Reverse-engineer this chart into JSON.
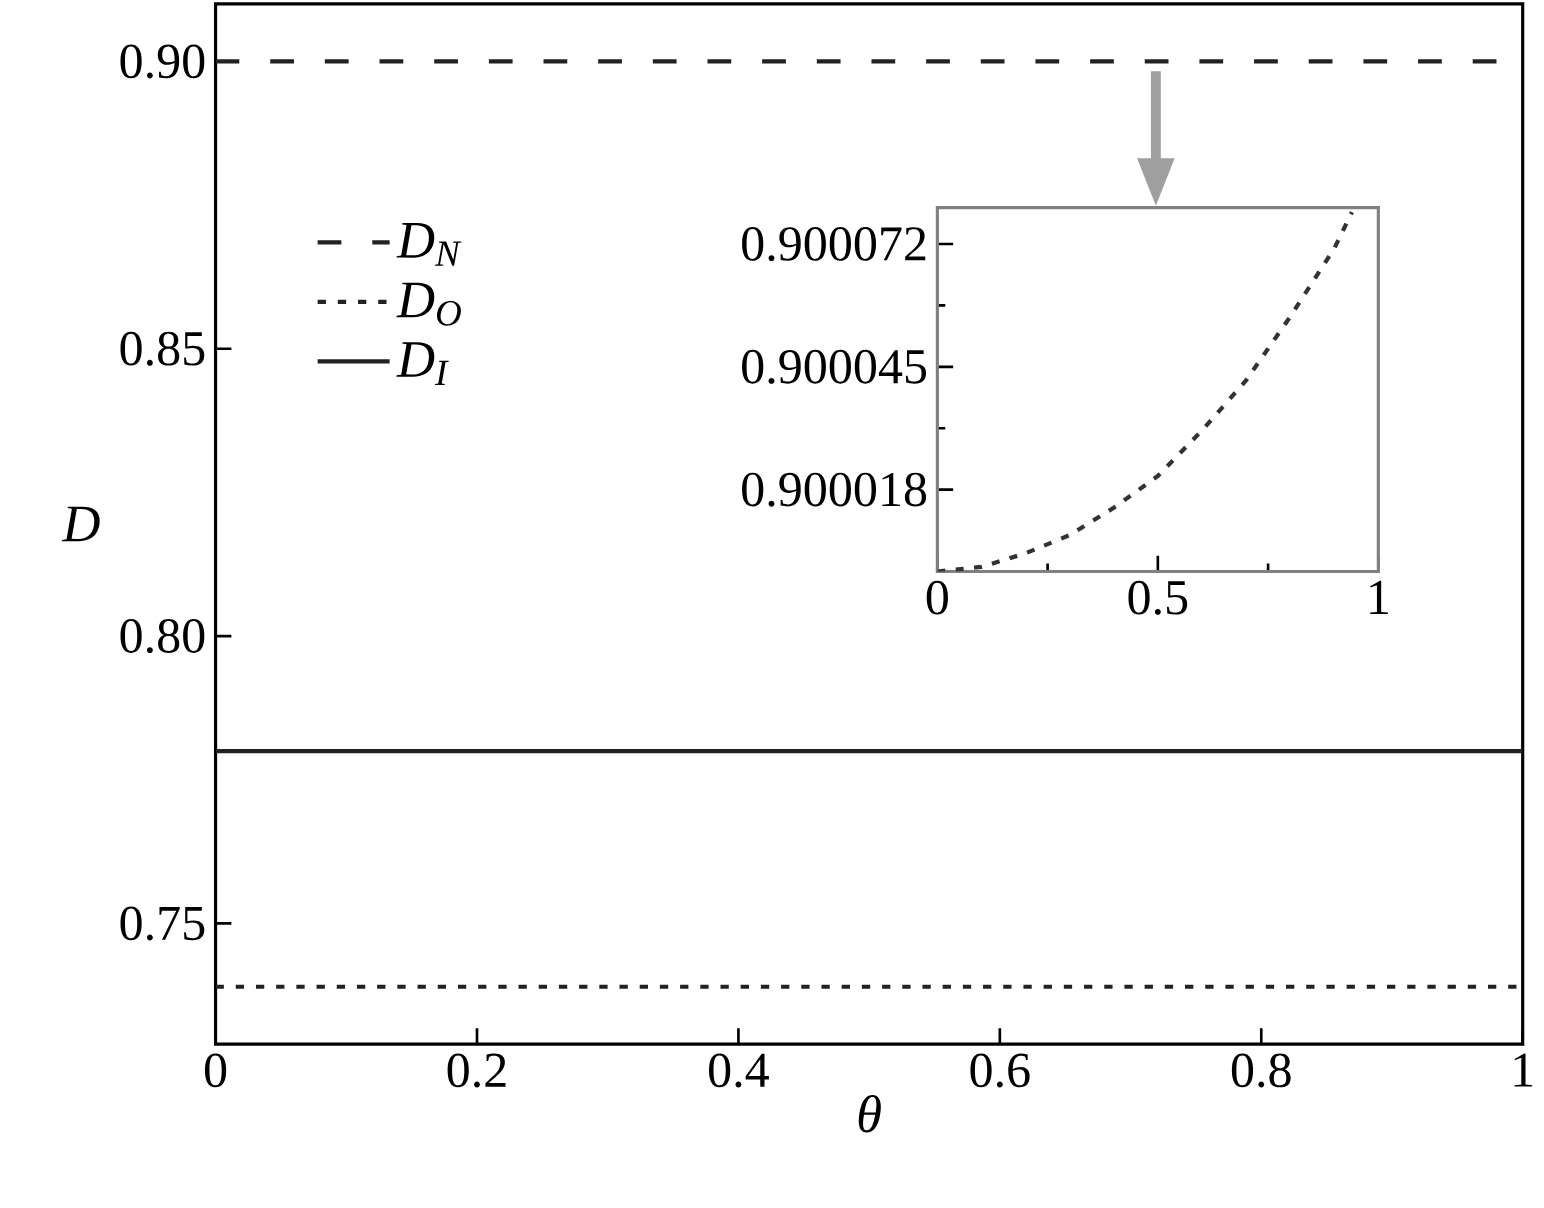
{
  "chart_data": [
    {
      "type": "line",
      "xlabel": "θ",
      "ylabel": "D",
      "x": [
        0,
        1
      ],
      "xlim": [
        0,
        1
      ],
      "ylim": [
        0.729,
        0.91
      ],
      "xticks": [
        0,
        0.2,
        0.4,
        0.6,
        0.8,
        1
      ],
      "yticks": [
        {
          "value": 0.75,
          "label": "0.75"
        },
        {
          "value": 0.8,
          "label": "0.80"
        },
        {
          "value": 0.85,
          "label": "0.85"
        },
        {
          "value": 0.9,
          "label": "0.90"
        }
      ],
      "legend": "top left",
      "series": [
        {
          "name": "D$_{N}$",
          "color": "#222222",
          "line_style": "dashed",
          "values": [
            0.9,
            0.9
          ]
        },
        {
          "name": "D$_{O}$",
          "color": "#222222",
          "line_style": "dotted",
          "values": [
            0.739,
            0.739
          ]
        },
        {
          "name": "D$_{I}$",
          "color": "#222222",
          "line_style": "solid",
          "values": [
            0.78,
            0.78
          ]
        }
      ]
    },
    {
      "type": "line",
      "xlim": [
        0,
        1
      ],
      "ylim": [
        0.9,
        0.90008
      ],
      "xticks": [
        0,
        0.5,
        1
      ],
      "yticks": [
        0.900018,
        0.900045,
        0.900072
      ],
      "series": [
        {
          "color": "#333333",
          "line_style": "dashed",
          "x": [
            0,
            0.1,
            0.2,
            0.3,
            0.4,
            0.5,
            0.6,
            0.7,
            0.8,
            0.9,
            0.94
          ],
          "values": [
            0.9,
            0.900001,
            0.900004,
            0.900008,
            0.900014,
            0.900021,
            0.900031,
            0.900042,
            0.900056,
            0.900071,
            0.900079
          ]
        }
      ]
    }
  ]
}
